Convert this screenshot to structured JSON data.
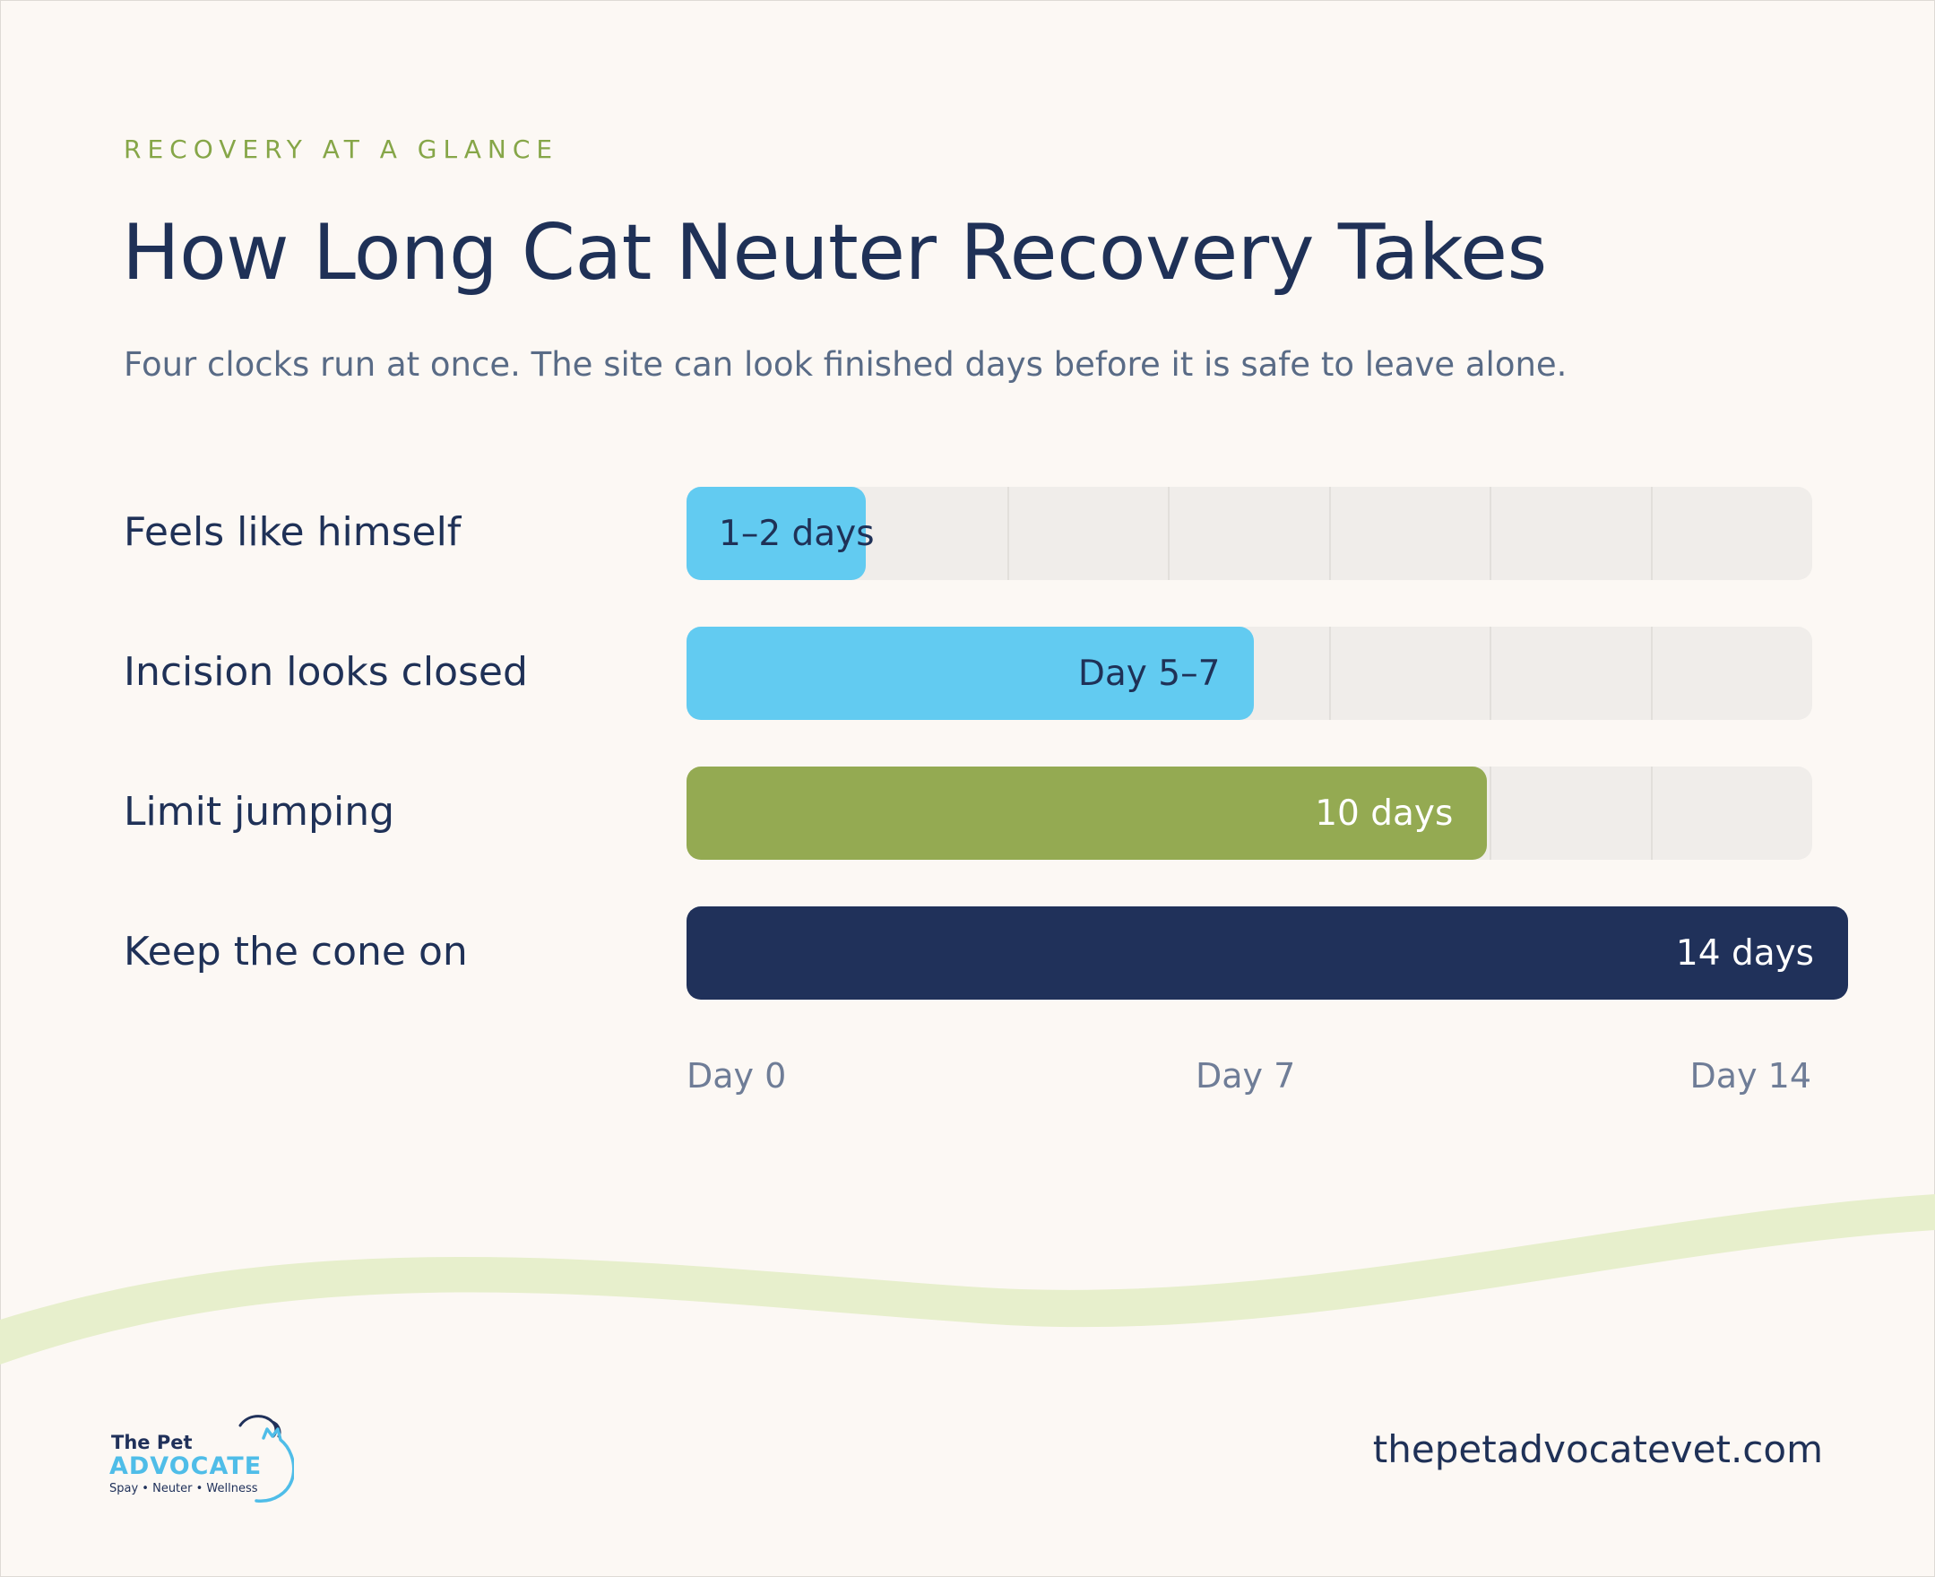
{
  "header": {
    "eyebrow": "RECOVERY AT A GLANCE",
    "title": "How Long Cat Neuter Recovery Takes",
    "subtitle": "Four clocks run at once. The site can look finished days before it is safe to leave alone."
  },
  "chart_data": {
    "type": "bar",
    "orientation": "horizontal",
    "categories": [
      "Feels like himself",
      "Incision looks closed",
      "Limit jumping",
      "Keep the cone on"
    ],
    "values": [
      2,
      7,
      10,
      14
    ],
    "value_labels": [
      "1–2 days",
      "Day 5–7",
      "10 days",
      "14 days"
    ],
    "colors": [
      "#62cbf1",
      "#62cbf1",
      "#94aa52",
      "#20315a"
    ],
    "label_colors": [
      "#1f3157",
      "#1f3157",
      "#ffffff",
      "#ffffff"
    ],
    "xlim": [
      0,
      14
    ],
    "x_ticks": [
      {
        "value": 0,
        "label": "Day 0"
      },
      {
        "value": 7,
        "label": "Day 7"
      },
      {
        "value": 14,
        "label": "Day 14"
      }
    ],
    "grid": true,
    "track_color": "#f0edea"
  },
  "footer": {
    "logo": {
      "line1": "The Pet",
      "line2": "ADVOCATE",
      "tagline": "Spay • Neuter • Wellness"
    },
    "url": "thepetadvocatevet.com"
  },
  "colors": {
    "background": "#fcf8f4",
    "navy": "#1f3157",
    "accent_green": "#86a648",
    "wave": "#e7efcc",
    "sky": "#62cbf1"
  }
}
